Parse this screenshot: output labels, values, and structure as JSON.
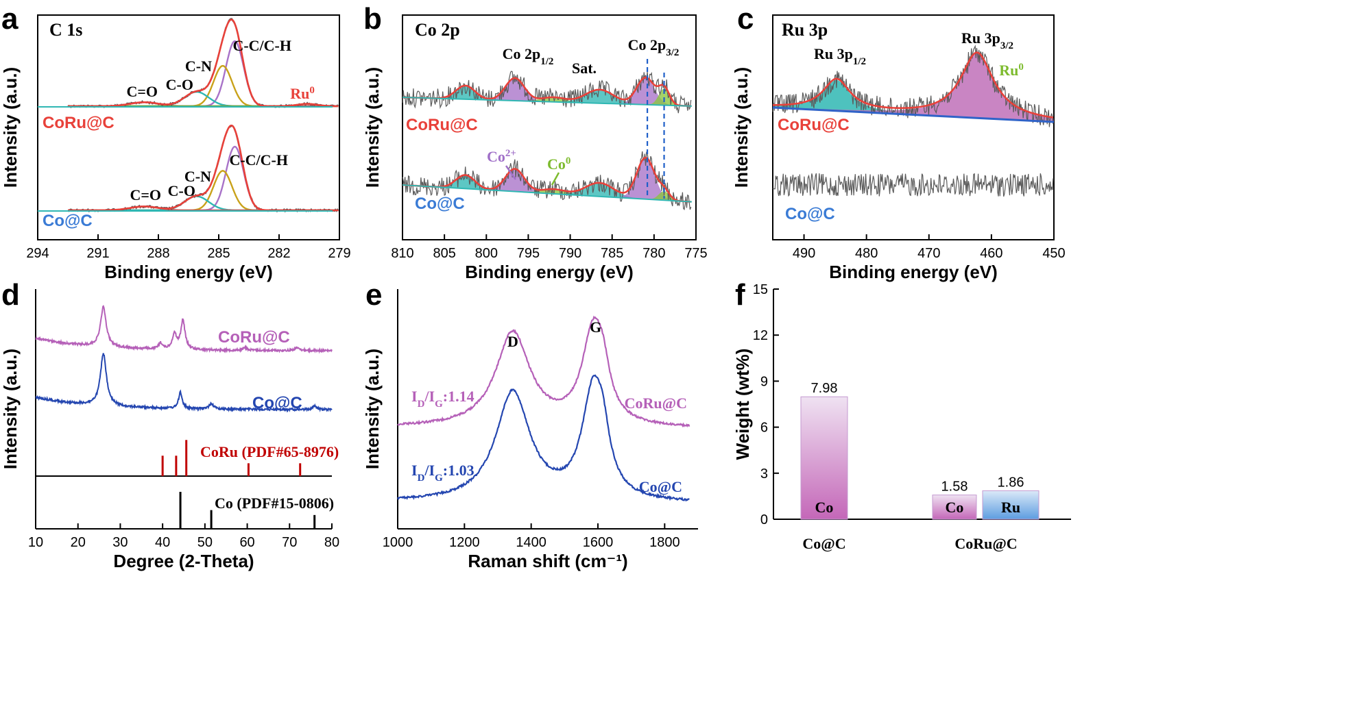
{
  "colors": {
    "coru": "#e8413a",
    "co": "#3a7bd5",
    "raw": "#5a5a5a",
    "teal": "#2fb7b3",
    "purple": "#a872c8",
    "gold": "#c9a21a",
    "green": "#8ac53e",
    "navy": "#1f3fa8",
    "magenta": "#b45fb5",
    "darkred": "#c00000",
    "base": "#2f63c8"
  },
  "chart_data": [
    {
      "id": "a",
      "type": "line",
      "panel_label": "a",
      "title": "C 1s",
      "xlabel": "Binding energy (eV)",
      "ylabel": "Intensity (a.u.)",
      "xlim": [
        294,
        279
      ],
      "xticks": [
        "294",
        "291",
        "288",
        "285",
        "282",
        "279"
      ],
      "series_labels": [
        "CoRu@C",
        "Co@C"
      ],
      "peaks": [
        {
          "name": "C-C/C-H",
          "center": 284.2
        },
        {
          "name": "C-N",
          "center": 284.8
        },
        {
          "name": "C-O",
          "center": 286.1
        },
        {
          "name": "C=O",
          "center": 288.7
        },
        {
          "name": "Ru⁰",
          "center": 280.6
        }
      ],
      "annotations": [
        "C-C/C-H",
        "C-N",
        "C-O",
        "C=O",
        "Ru⁰",
        "C-C/C-H",
        "C-N",
        "C-O",
        "C=O"
      ]
    },
    {
      "id": "b",
      "type": "line",
      "panel_label": "b",
      "title": "Co 2p",
      "xlabel": "Binding energy (eV)",
      "ylabel": "Intensity (a.u.)",
      "xlim": [
        810,
        775
      ],
      "xticks": [
        "810",
        "805",
        "800",
        "795",
        "790",
        "785",
        "780",
        "775"
      ],
      "series_labels": [
        "CoRu@C",
        "Co@C"
      ],
      "peaks": [
        {
          "name": "Co 2p3/2 (Co²⁺)",
          "center": 781.0
        },
        {
          "name": "Co 2p3/2 (Co⁰)",
          "center": 778.8
        },
        {
          "name": "Sat.",
          "center": 786.5
        },
        {
          "name": "Co 2p1/2 (Co²⁺)",
          "center": 796.6
        },
        {
          "name": "Sat. 2p1/2",
          "center": 802.5
        }
      ],
      "annotations": {
        "p12_main": "Co 2p",
        "p12_sub": "1/2",
        "sat": "Sat.",
        "p32_main": "Co 2p",
        "p32_sub": "3/2",
        "co2_main": "Co",
        "co2_sup": "2+",
        "co0_main": "Co",
        "co0_sup": "0"
      }
    },
    {
      "id": "c",
      "type": "line",
      "panel_label": "c",
      "title": "Ru 3p",
      "xlabel": "Binding energy (eV)",
      "ylabel": "Intensity (a.u.)",
      "xlim": [
        495,
        450
      ],
      "xticks": [
        "490",
        "480",
        "470",
        "460",
        "450"
      ],
      "series_labels": [
        "CoRu@C",
        "Co@C"
      ],
      "peaks": [
        {
          "name": "Ru 3p1/2",
          "center": 484.8
        },
        {
          "name": "Ru 3p3/2",
          "center": 462.3
        }
      ],
      "annotations": {
        "p12_main": "Ru 3p",
        "p12_sub": "1/2",
        "p32_main": "Ru 3p",
        "p32_sub": "3/2",
        "ru_main": "Ru",
        "ru_sup": "0"
      }
    },
    {
      "id": "d",
      "type": "line",
      "panel_label": "d",
      "xlabel": "Degree (2-Theta)",
      "ylabel": "Intensity (a.u.)",
      "xlim": [
        10,
        80
      ],
      "xticks": [
        "10",
        "20",
        "30",
        "40",
        "50",
        "60",
        "70",
        "80"
      ],
      "series": [
        {
          "name": "CoRu@C",
          "peaks_2theta": [
            26.0,
            39.5,
            42.8,
            44.8,
            59.5,
            71.8
          ]
        },
        {
          "name": "Co@C",
          "peaks_2theta": [
            26.0,
            44.2,
            51.5,
            75.9
          ]
        }
      ],
      "references": [
        {
          "name": "CoRu (PDF#65-8976)",
          "lines": [
            {
              "x": 40.0,
              "h": 0.35
            },
            {
              "x": 43.2,
              "h": 0.35
            },
            {
              "x": 45.6,
              "h": 0.62
            },
            {
              "x": 60.3,
              "h": 0.22
            },
            {
              "x": 72.5,
              "h": 0.22
            }
          ]
        },
        {
          "name": "Co (PDF#15-0806)",
          "lines": [
            {
              "x": 44.2,
              "h": 0.75
            },
            {
              "x": 51.5,
              "h": 0.38
            },
            {
              "x": 75.9,
              "h": 0.28
            }
          ]
        }
      ]
    },
    {
      "id": "e",
      "type": "line",
      "panel_label": "e",
      "xlabel": "Raman shift (cm⁻¹)",
      "ylabel": "Intensity (a.u.)",
      "xlim": [
        1000,
        1900
      ],
      "xticks": [
        "1000",
        "1200",
        "1400",
        "1600",
        "1800"
      ],
      "bands": [
        {
          "name": "D",
          "x": 1345
        },
        {
          "name": "G",
          "x": 1585
        }
      ],
      "series": [
        {
          "name": "CoRu@C",
          "ratio_main": "I",
          "ratio_sub1": "D",
          "ratio_mid": "/I",
          "ratio_sub2": "G",
          "ratio_value": ":1.14",
          "ID_IG": 1.14
        },
        {
          "name": "Co@C",
          "ratio_main": "I",
          "ratio_sub1": "D",
          "ratio_mid": "/I",
          "ratio_sub2": "G",
          "ratio_value": ":1.03",
          "ID_IG": 1.03
        }
      ]
    },
    {
      "id": "f",
      "type": "bar",
      "panel_label": "f",
      "ylabel": "Weight (wt%)",
      "ylim": [
        0,
        15
      ],
      "yticks": [
        "0",
        "3",
        "6",
        "9",
        "12",
        "15"
      ],
      "categories": [
        "Co@C",
        "CoRu@C"
      ],
      "bars": [
        {
          "group": "Co@C",
          "element": "Co",
          "value": 7.98,
          "label": "7.98"
        },
        {
          "group": "CoRu@C",
          "element": "Co",
          "value": 1.58,
          "label": "1.58"
        },
        {
          "group": "CoRu@C",
          "element": "Ru",
          "value": 1.86,
          "label": "1.86"
        }
      ]
    }
  ]
}
